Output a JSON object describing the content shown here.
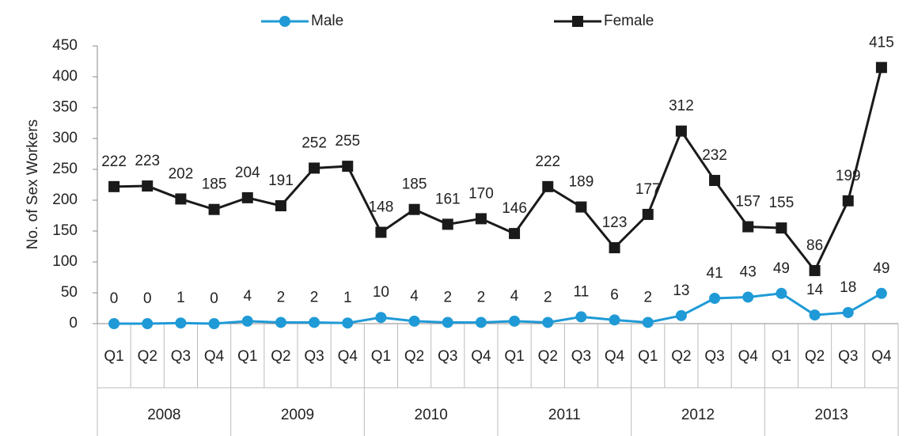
{
  "chart_data": {
    "type": "line",
    "ylabel": "No. of Sex Workers",
    "categories": [
      "Q1",
      "Q2",
      "Q3",
      "Q4",
      "Q1",
      "Q2",
      "Q3",
      "Q4",
      "Q1",
      "Q2",
      "Q3",
      "Q4",
      "Q1",
      "Q2",
      "Q3",
      "Q4",
      "Q1",
      "Q2",
      "Q3",
      "Q4",
      "Q1",
      "Q2",
      "Q3",
      "Q4"
    ],
    "years": [
      "2008",
      "2009",
      "2010",
      "2011",
      "2012",
      "2013"
    ],
    "series": [
      {
        "name": "Male",
        "color": "#1f9ad6",
        "marker": "circle",
        "values": [
          0,
          0,
          1,
          0,
          4,
          2,
          2,
          1,
          10,
          4,
          2,
          2,
          4,
          2,
          11,
          6,
          2,
          13,
          41,
          43,
          49,
          14,
          18,
          49
        ]
      },
      {
        "name": "Female",
        "color": "#1a1a1a",
        "marker": "square",
        "values": [
          222,
          223,
          202,
          185,
          204,
          191,
          252,
          255,
          148,
          185,
          161,
          170,
          146,
          222,
          189,
          123,
          177,
          312,
          232,
          157,
          155,
          86,
          199,
          415
        ]
      }
    ],
    "ylim": [
      0,
      450
    ],
    "yticks": [
      0,
      50,
      100,
      150,
      200,
      250,
      300,
      350,
      400,
      450
    ],
    "grid": false,
    "legend": "top"
  }
}
